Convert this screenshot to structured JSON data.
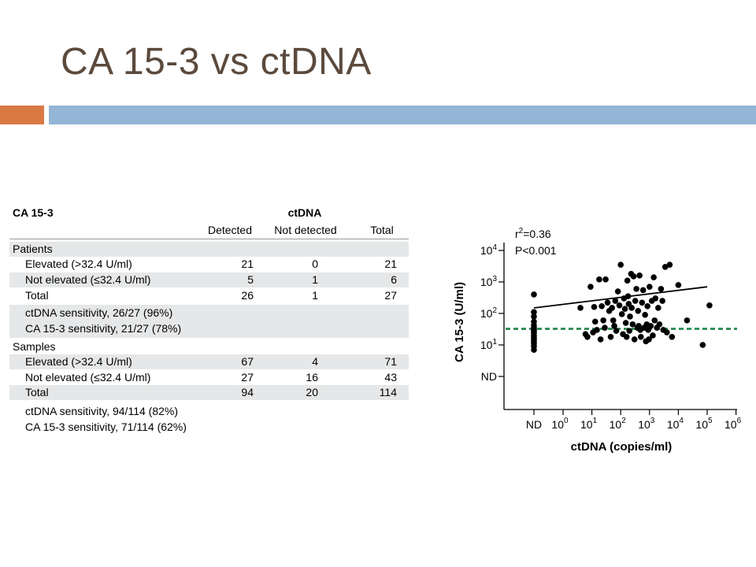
{
  "slide": {
    "title": "CA 15-3 vs ctDNA"
  },
  "table": {
    "title": "CA 15-3",
    "group_header": "ctDNA",
    "columns": [
      "Detected",
      "Not detected",
      "Total"
    ],
    "sections": [
      {
        "header": "Patients",
        "rows": [
          {
            "label": "Elevated (>32.4 U/ml)",
            "values": [
              "21",
              "0",
              "21"
            ]
          },
          {
            "label": "Not elevated (≤32.4 U/ml)",
            "values": [
              "5",
              "1",
              "6"
            ]
          },
          {
            "label": "Total",
            "values": [
              "26",
              "1",
              "27"
            ]
          }
        ],
        "notes": [
          "ctDNA sensitivity, 26/27 (96%)",
          "CA 15-3 sensitivity, 21/27 (78%)"
        ]
      },
      {
        "header": "Samples",
        "rows": [
          {
            "label": "Elevated (>32.4 U/ml)",
            "values": [
              "67",
              "4",
              "71"
            ]
          },
          {
            "label": "Not elevated (≤32.4 U/ml)",
            "values": [
              "27",
              "16",
              "43"
            ]
          },
          {
            "label": "Total",
            "values": [
              "94",
              "20",
              "114"
            ]
          }
        ],
        "notes": [
          "ctDNA sensitivity, 94/114 (82%)",
          "CA 15-3 sensitivity, 71/114 (62%)"
        ]
      }
    ]
  },
  "chart_data": {
    "type": "scatter",
    "xlabel": "ctDNA (copies/ml)",
    "ylabel": "CA 15-3 (U/ml)",
    "xscale": "log",
    "yscale": "log",
    "x_ticks": [
      {
        "base": "ND",
        "exp": ""
      },
      {
        "base": "10",
        "exp": "0"
      },
      {
        "base": "10",
        "exp": "1"
      },
      {
        "base": "10",
        "exp": "2"
      },
      {
        "base": "10",
        "exp": "3"
      },
      {
        "base": "10",
        "exp": "4"
      },
      {
        "base": "10",
        "exp": "5"
      },
      {
        "base": "10",
        "exp": "6"
      }
    ],
    "y_ticks": [
      {
        "base": "ND",
        "exp": ""
      },
      {
        "base": "10",
        "exp": "1"
      },
      {
        "base": "10",
        "exp": "2"
      },
      {
        "base": "10",
        "exp": "3"
      },
      {
        "base": "10",
        "exp": "4"
      }
    ],
    "annotation": {
      "r_base": "r",
      "r_exp": "2",
      "r_value": "=0.36",
      "p_text": "P<0.001"
    },
    "threshold": {
      "y": 32.4,
      "color": "#1e8449"
    },
    "regression": {
      "x": [
        1,
        100000
      ],
      "y": [
        150,
        700
      ],
      "color": "#000000"
    },
    "point_color": "#000000",
    "points": [
      [
        "ND",
        400
      ],
      [
        "ND",
        110
      ],
      [
        "ND",
        80
      ],
      [
        "ND",
        55
      ],
      [
        "ND",
        42
      ],
      [
        "ND",
        35
      ],
      [
        "ND",
        30
      ],
      [
        "ND",
        27
      ],
      [
        "ND",
        24
      ],
      [
        "ND",
        20
      ],
      [
        "ND",
        17
      ],
      [
        "ND",
        15
      ],
      [
        "ND",
        13
      ],
      [
        "ND",
        11
      ],
      [
        "ND",
        9
      ],
      [
        "ND",
        7
      ],
      [
        4,
        150
      ],
      [
        6,
        22
      ],
      [
        7,
        18
      ],
      [
        9,
        700
      ],
      [
        11,
        25
      ],
      [
        12,
        160
      ],
      [
        13,
        55
      ],
      [
        15,
        30
      ],
      [
        18,
        1200
      ],
      [
        20,
        15
      ],
      [
        22,
        170
      ],
      [
        25,
        60
      ],
      [
        28,
        35
      ],
      [
        30,
        1200
      ],
      [
        35,
        220
      ],
      [
        40,
        120
      ],
      [
        45,
        18
      ],
      [
        50,
        150
      ],
      [
        55,
        60
      ],
      [
        60,
        40
      ],
      [
        65,
        250
      ],
      [
        70,
        28
      ],
      [
        80,
        500
      ],
      [
        90,
        180
      ],
      [
        100,
        3500
      ],
      [
        110,
        95
      ],
      [
        120,
        22
      ],
      [
        130,
        300
      ],
      [
        140,
        140
      ],
      [
        150,
        50
      ],
      [
        160,
        18
      ],
      [
        170,
        1100
      ],
      [
        180,
        350
      ],
      [
        190,
        200
      ],
      [
        200,
        28
      ],
      [
        210,
        80
      ],
      [
        230,
        1800
      ],
      [
        240,
        150
      ],
      [
        260,
        45
      ],
      [
        280,
        1500
      ],
      [
        300,
        15
      ],
      [
        320,
        250
      ],
      [
        350,
        600
      ],
      [
        380,
        35
      ],
      [
        400,
        120
      ],
      [
        420,
        40
      ],
      [
        450,
        1600
      ],
      [
        480,
        30
      ],
      [
        500,
        18
      ],
      [
        550,
        220
      ],
      [
        600,
        550
      ],
      [
        650,
        35
      ],
      [
        700,
        90
      ],
      [
        750,
        13
      ],
      [
        800,
        45
      ],
      [
        850,
        170
      ],
      [
        900,
        30
      ],
      [
        950,
        15
      ],
      [
        1000,
        700
      ],
      [
        1100,
        40
      ],
      [
        1200,
        250
      ],
      [
        1300,
        20
      ],
      [
        1400,
        1400
      ],
      [
        1500,
        60
      ],
      [
        1600,
        300
      ],
      [
        1800,
        35
      ],
      [
        2000,
        150
      ],
      [
        2200,
        45
      ],
      [
        2500,
        600
      ],
      [
        2800,
        250
      ],
      [
        3000,
        30
      ],
      [
        3500,
        3000
      ],
      [
        4000,
        25
      ],
      [
        5000,
        3500
      ],
      [
        6000,
        18
      ],
      [
        10000,
        800
      ],
      [
        20000,
        60
      ],
      [
        70000,
        10
      ],
      [
        120000,
        180
      ]
    ]
  }
}
